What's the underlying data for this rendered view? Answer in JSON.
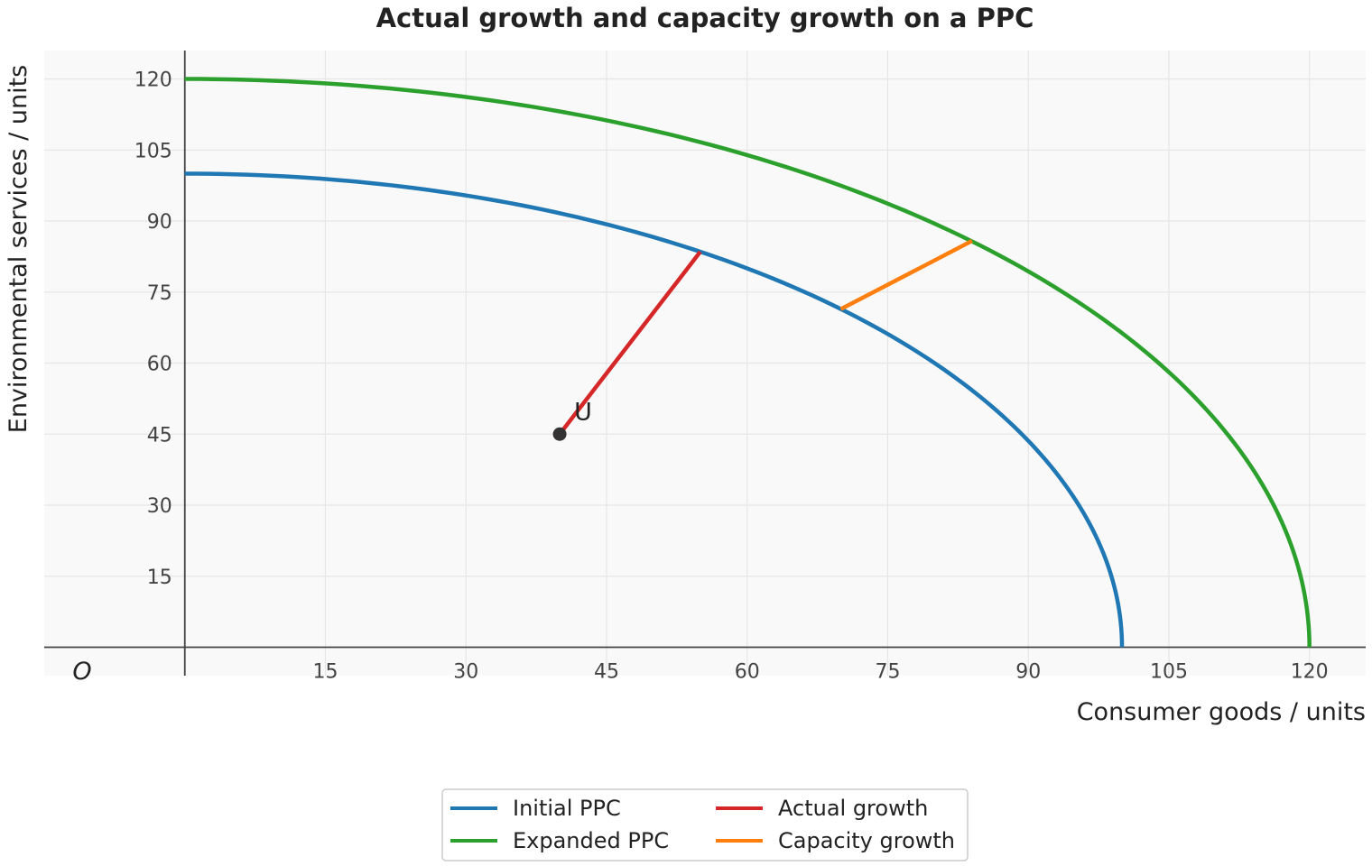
{
  "chart_data": {
    "type": "line",
    "title": "Actual growth and capacity growth on a PPC",
    "xlabel": "Consumer goods / units",
    "ylabel": "Environmental services / units",
    "origin_label": "O",
    "xlim": [
      -15,
      126
    ],
    "ylim": [
      -6,
      126
    ],
    "xticks": [
      15,
      30,
      45,
      60,
      75,
      90,
      105,
      120
    ],
    "yticks": [
      15,
      30,
      45,
      60,
      75,
      90,
      105,
      120
    ],
    "grid": true,
    "legend_position": "bottom-center",
    "series": [
      {
        "name": "Initial PPC",
        "color": "#1f77b4",
        "kind": "ppc",
        "intercept": 100
      },
      {
        "name": "Expanded PPC",
        "color": "#2ca02c",
        "kind": "ppc",
        "intercept": 120
      },
      {
        "name": "Actual growth",
        "color": "#d62728",
        "kind": "segment",
        "points": [
          [
            40,
            45
          ],
          [
            55,
            83.5
          ]
        ]
      },
      {
        "name": "Capacity growth",
        "color": "#ff7f0e",
        "kind": "segment",
        "points": [
          [
            70,
            71.4
          ],
          [
            84,
            85.8
          ]
        ]
      }
    ],
    "points": [
      {
        "label": "U",
        "x": 40,
        "y": 45,
        "color": "#333333"
      }
    ]
  }
}
